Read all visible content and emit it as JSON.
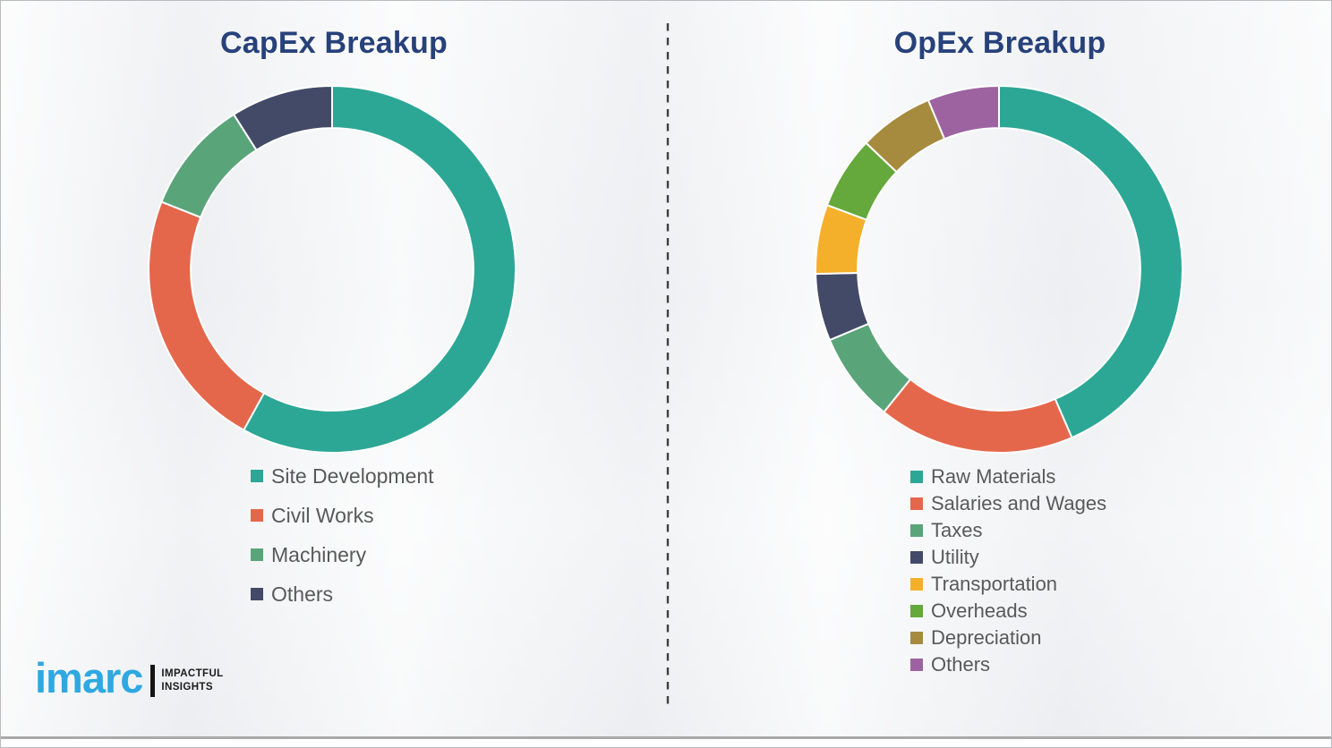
{
  "chart_data": [
    {
      "type": "pie",
      "variant": "donut",
      "title": "CapEx Breakup",
      "labels": [
        "Site Development",
        "Civil Works",
        "Machinery",
        "Others"
      ],
      "values": [
        58,
        23,
        10,
        9
      ],
      "colors": [
        "#2da795",
        "#e5674b",
        "#5aa47a",
        "#424a67"
      ],
      "start_angle_deg": 0,
      "direction": "clockwise",
      "inner_radius_ratio": 0.77,
      "legend_position": "below",
      "data_labels": false
    },
    {
      "type": "pie",
      "variant": "donut",
      "title": "OpEx Breakup",
      "labels": [
        "Raw Materials",
        "Salaries and Wages",
        "Taxes",
        "Utility",
        "Transportation",
        "Overheads",
        "Depreciation",
        "Others"
      ],
      "values": [
        43.5,
        17.3,
        7.9,
        5.9,
        6.1,
        6.4,
        6.6,
        6.3
      ],
      "colors": [
        "#2da795",
        "#e5674b",
        "#5aa47a",
        "#424a67",
        "#f5b02b",
        "#65a83b",
        "#a68b3f",
        "#9d63a1"
      ],
      "start_angle_deg": 0,
      "direction": "clockwise",
      "inner_radius_ratio": 0.77,
      "legend_position": "below",
      "data_labels": false
    }
  ],
  "branding": {
    "logo_text": "imarc",
    "tagline_line1": "IMPACTFUL",
    "tagline_line2": "INSIGHTS",
    "logo_color": "#2fa8e1",
    "tagline_color": "#1a1a1a"
  },
  "theme": {
    "title_color": "#27417a",
    "legend_text_color": "#595959",
    "divider_color": "#404040",
    "background_color": "#f2f3f5",
    "segment_gap_color": "#ffffff"
  }
}
